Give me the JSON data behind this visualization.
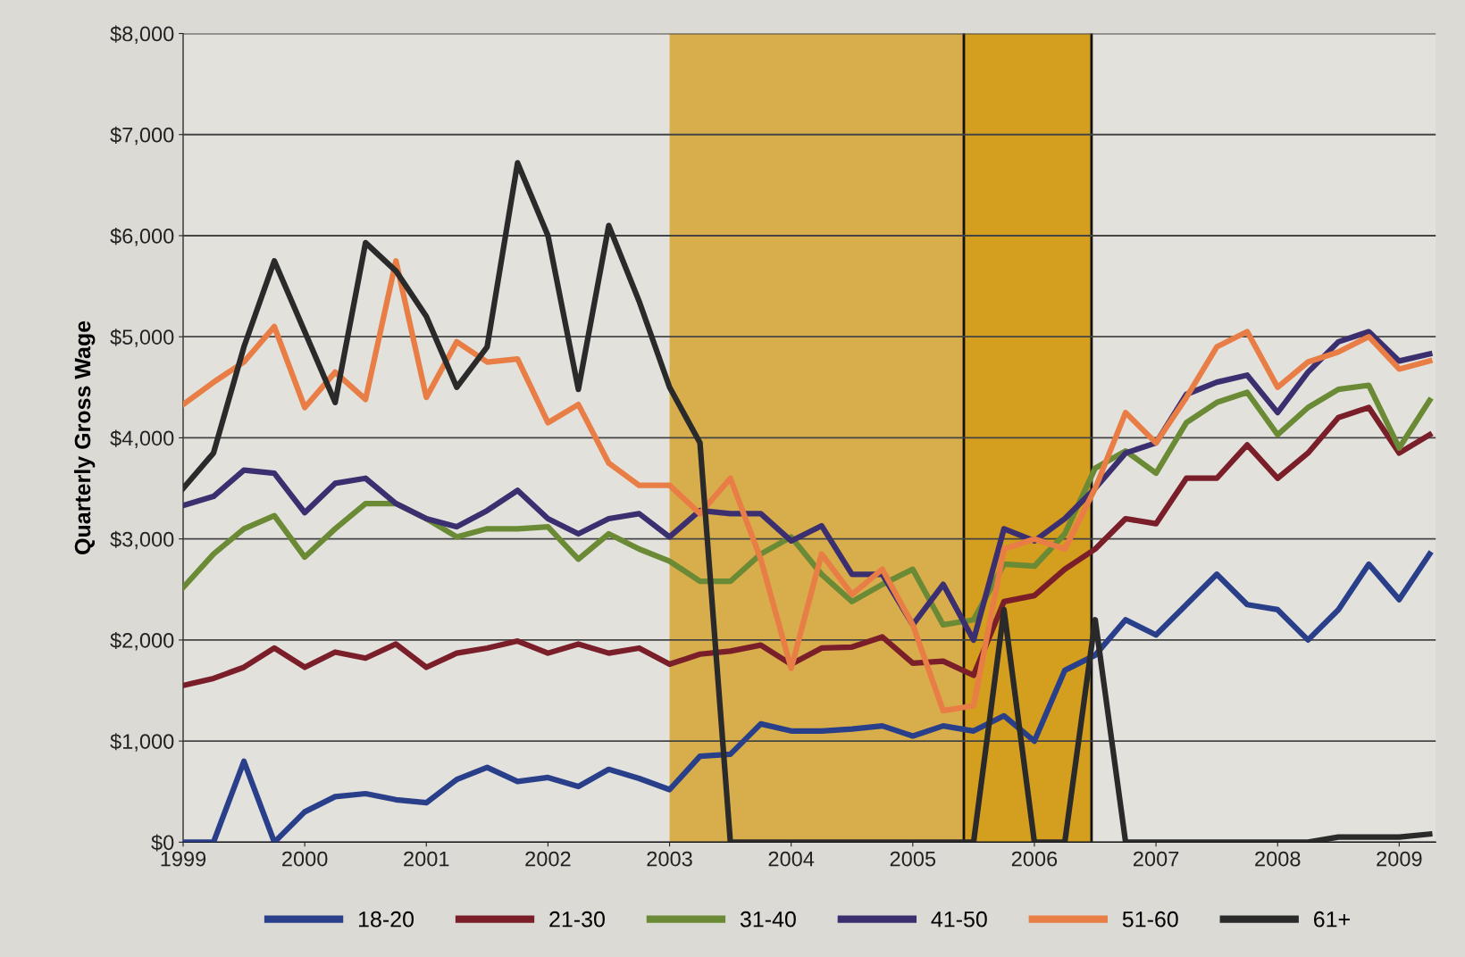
{
  "chart_data": {
    "type": "line",
    "ylabel": "Quarterly Gross Wage",
    "x": [
      1999,
      1999.25,
      1999.5,
      1999.75,
      2000,
      2000.25,
      2000.5,
      2000.75,
      2001,
      2001.25,
      2001.5,
      2001.75,
      2002,
      2002.25,
      2002.5,
      2002.75,
      2003,
      2003.25,
      2003.5,
      2003.75,
      2004,
      2004.25,
      2004.5,
      2004.75,
      2005,
      2005.25,
      2005.5,
      2005.75,
      2006,
      2006.25,
      2006.5,
      2006.75,
      2007,
      2007.25,
      2007.5,
      2007.75,
      2008,
      2008.25,
      2008.5,
      2008.75,
      2009,
      2009.25
    ],
    "series": [
      {
        "name": "18-20",
        "color": "#2a3f8a",
        "values": [
          0,
          0,
          800,
          0,
          300,
          450,
          480,
          420,
          390,
          620,
          740,
          600,
          640,
          550,
          720,
          630,
          520,
          850,
          870,
          1170,
          1100,
          1100,
          1120,
          1150,
          1050,
          1150,
          1100,
          1250,
          1000,
          1700,
          1850,
          2200,
          2050,
          2350,
          2650,
          2350,
          2300,
          2000,
          2300,
          2750,
          2400,
          2850
        ]
      },
      {
        "name": "21-30",
        "color": "#7a1e2a",
        "values": [
          1550,
          1620,
          1730,
          1920,
          1730,
          1880,
          1820,
          1960,
          1730,
          1870,
          1920,
          1990,
          1870,
          1960,
          1870,
          1920,
          1760,
          1860,
          1890,
          1950,
          1760,
          1920,
          1930,
          2030,
          1770,
          1790,
          1650,
          2380,
          2440,
          2700,
          2900,
          3200,
          3150,
          3600,
          3600,
          3930,
          3600,
          3850,
          4200,
          4300,
          3850,
          4030
        ]
      },
      {
        "name": "31-40",
        "color": "#6b8a35",
        "values": [
          2520,
          2850,
          3100,
          3230,
          2820,
          3100,
          3350,
          3350,
          3200,
          3020,
          3100,
          3100,
          3120,
          2800,
          3050,
          2900,
          2780,
          2580,
          2580,
          2850,
          3020,
          2650,
          2380,
          2550,
          2700,
          2150,
          2200,
          2750,
          2730,
          3050,
          3700,
          3870,
          3650,
          4150,
          4350,
          4450,
          4030,
          4300,
          4480,
          4520,
          3900,
          4370
        ]
      },
      {
        "name": "41-50",
        "color": "#3c2f70",
        "values": [
          3330,
          3420,
          3680,
          3650,
          3260,
          3550,
          3600,
          3350,
          3200,
          3120,
          3280,
          3480,
          3200,
          3050,
          3200,
          3250,
          3020,
          3280,
          3250,
          3250,
          2980,
          3130,
          2650,
          2650,
          2150,
          2550,
          2000,
          3100,
          2980,
          3200,
          3500,
          3850,
          3950,
          4430,
          4550,
          4620,
          4250,
          4650,
          4950,
          5050,
          4760,
          4830
        ]
      },
      {
        "name": "51-60",
        "color": "#e87d45",
        "values": [
          4330,
          4550,
          4750,
          5100,
          4300,
          4650,
          4380,
          5750,
          4400,
          4950,
          4750,
          4780,
          4150,
          4330,
          3750,
          3530,
          3530,
          3250,
          3600,
          2800,
          1720,
          2850,
          2450,
          2700,
          2150,
          1300,
          1350,
          2900,
          3000,
          2900,
          3500,
          4250,
          3950,
          4400,
          4900,
          5050,
          4500,
          4750,
          4850,
          5000,
          4680,
          4760
        ]
      },
      {
        "name": "61+",
        "color": "#2a2a2a",
        "values": [
          3500,
          3850,
          4900,
          5750,
          5050,
          4350,
          5930,
          5650,
          5200,
          4500,
          4900,
          6720,
          6000,
          4480,
          6100,
          5350,
          4500,
          3950,
          0,
          0,
          0,
          0,
          0,
          0,
          0,
          0,
          0,
          2300,
          0,
          0,
          2200,
          0,
          0,
          0,
          0,
          0,
          0,
          0,
          50,
          50,
          50,
          80
        ]
      }
    ],
    "xlim": [
      1999,
      2009.3
    ],
    "xticks": [
      1999,
      2000,
      2001,
      2002,
      2003,
      2004,
      2005,
      2006,
      2007,
      2008,
      2009
    ],
    "ylim": [
      0,
      8000
    ],
    "yticks": [
      {
        "value": 0,
        "label": "$0"
      },
      {
        "value": 1000,
        "label": "$1,000"
      },
      {
        "value": 2000,
        "label": "$2,000"
      },
      {
        "value": 3000,
        "label": "$3,000"
      },
      {
        "value": 4000,
        "label": "$4,000"
      },
      {
        "value": 5000,
        "label": "$5,000"
      },
      {
        "value": 6000,
        "label": "$6,000"
      },
      {
        "value": 7000,
        "label": "$7,000"
      },
      {
        "value": 8000,
        "label": "$8,000"
      }
    ],
    "bands": [
      {
        "axis": "x",
        "from": 2003,
        "to": 2005.42,
        "color": "#d8ae4c"
      },
      {
        "axis": "x",
        "from": 2005.42,
        "to": 2006.47,
        "color": "#d49e1e"
      }
    ],
    "ref_lines": [
      {
        "axis": "x",
        "value": 2005.42,
        "color": "#111111"
      },
      {
        "axis": "x",
        "value": 2006.47,
        "color": "#111111"
      }
    ],
    "grid": "y",
    "legend": "bottom",
    "marker": "none",
    "line_style": "solid"
  }
}
